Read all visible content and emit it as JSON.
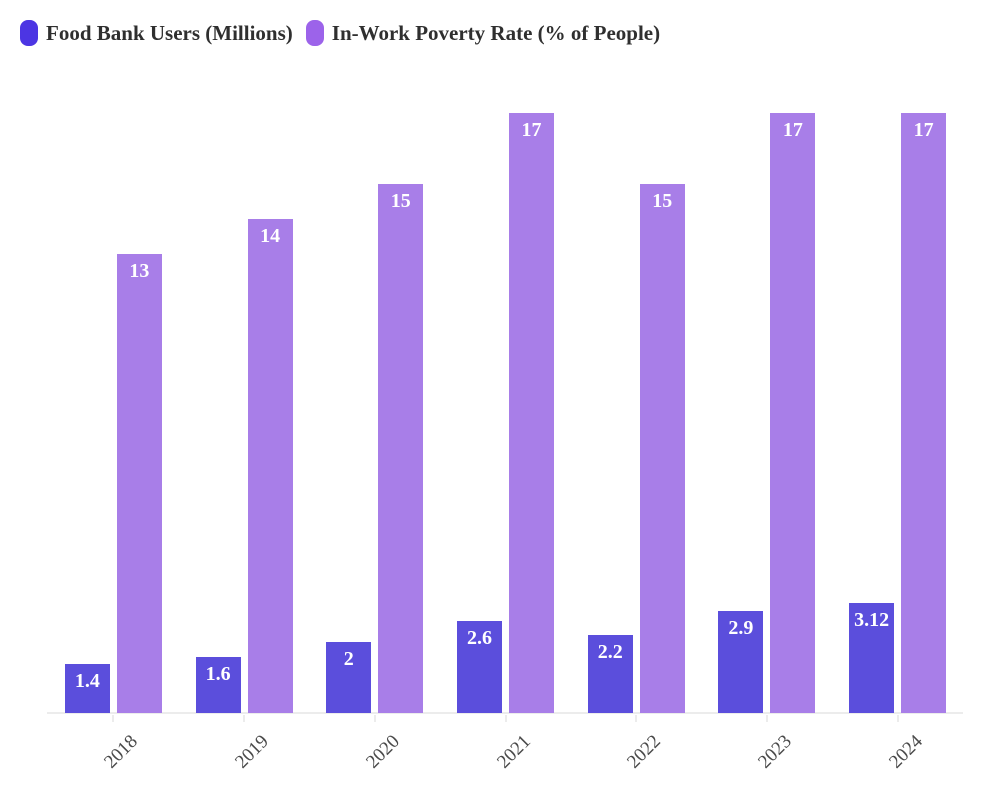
{
  "chart_data": {
    "type": "bar",
    "title": "",
    "xlabel": "",
    "ylabel": "",
    "categories": [
      "2018",
      "2019",
      "2020",
      "2021",
      "2022",
      "2023",
      "2024"
    ],
    "series": [
      {
        "name": "Food Bank Users (Millions)",
        "key": "food-bank-users",
        "color": "#5b4edc",
        "legend_color": "#4c35e3",
        "values": [
          1.4,
          1.6,
          2,
          2.6,
          2.2,
          2.9,
          3.12
        ]
      },
      {
        "name": "In-Work Poverty Rate (% of People)",
        "key": "poverty-rate",
        "color": "#a87ee8",
        "legend_color": "#9c63ea",
        "values": [
          13,
          14,
          15,
          17,
          15,
          17,
          17
        ]
      }
    ],
    "ylim": [
      0,
      17
    ],
    "grid": false,
    "y_axis_visible": false,
    "legend_position": "top-left",
    "value_labels": "inside-top",
    "value_label_color": "#ffffff",
    "x_label_rotation_deg": -45
  },
  "axis": {
    "line_color": "#ececec",
    "label_color": "#4a4a4a"
  }
}
